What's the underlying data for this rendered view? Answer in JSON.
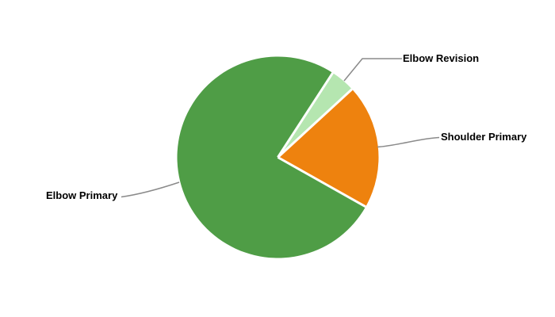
{
  "chart_data": {
    "type": "pie",
    "title": "",
    "legend": "none",
    "label_style": "outside-callout",
    "background": "#ffffff",
    "rotation_deg_cw_from_top": 119.4,
    "slices": [
      {
        "label": "Elbow Primary",
        "value_pct": 76,
        "color": "#4f9d46"
      },
      {
        "label": "Elbow Revision",
        "value_pct": 4,
        "color": "#b5e6b0"
      },
      {
        "label": "Shoulder Primary",
        "value_pct": 20,
        "color": "#ee820e"
      }
    ],
    "separator_color": "#ffffff",
    "leader_line_color": "#8a8a8a",
    "label_text_color": "#000000"
  }
}
